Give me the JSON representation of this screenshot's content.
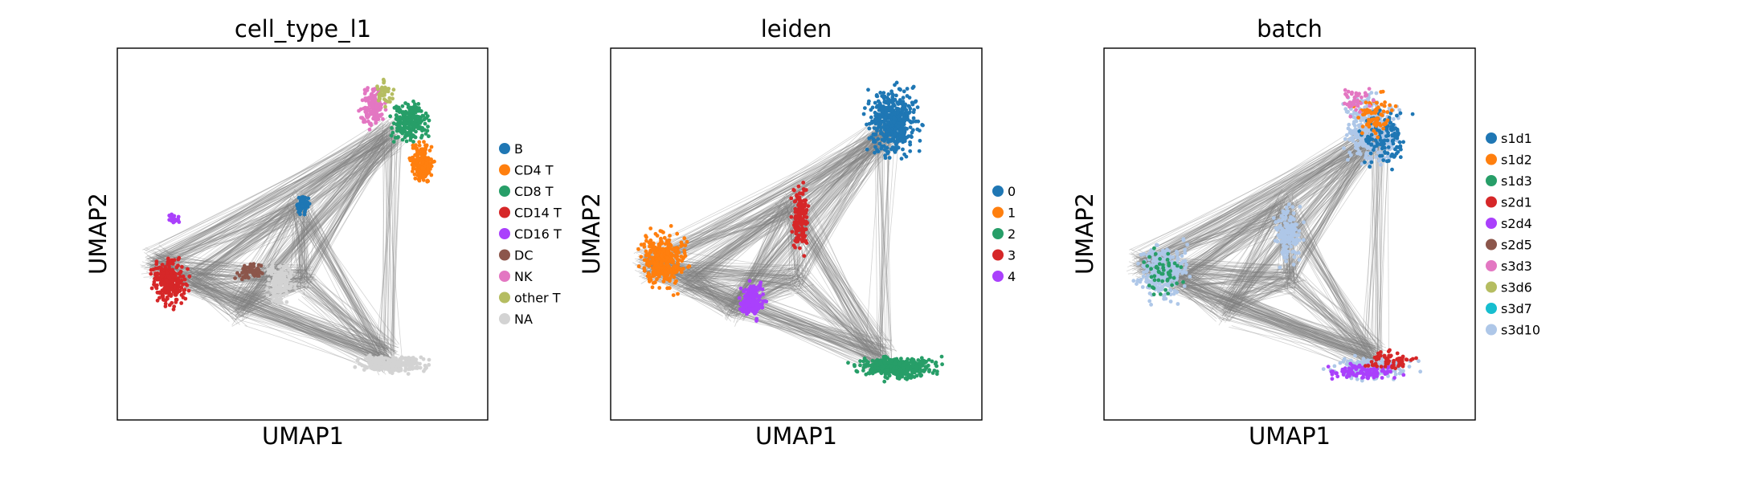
{
  "colors": {
    "edge": "#808080",
    "frame": "#000000"
  },
  "chart_data": [
    {
      "type": "scatter",
      "title": "cell_type_l1",
      "xlabel": "UMAP1",
      "ylabel": "UMAP2",
      "legend_position": "right",
      "grid": false,
      "categories": [
        "B",
        "CD4 T",
        "CD8 T",
        "CD14 T",
        "CD16 T",
        "DC",
        "NK",
        "other T",
        "NA"
      ],
      "category_colors": [
        "#1f77b4",
        "#ff7f0e",
        "#279e68",
        "#d62728",
        "#aa40fc",
        "#8c564b",
        "#e377c2",
        "#b5bd61",
        "#d3d3d3"
      ]
    },
    {
      "type": "scatter",
      "title": "leiden",
      "xlabel": "UMAP1",
      "ylabel": "UMAP2",
      "legend_position": "right",
      "grid": false,
      "categories": [
        "0",
        "1",
        "2",
        "3",
        "4"
      ],
      "category_colors": [
        "#1f77b4",
        "#ff7f0e",
        "#279e68",
        "#d62728",
        "#aa40fc"
      ]
    },
    {
      "type": "scatter",
      "title": "batch",
      "xlabel": "UMAP1",
      "ylabel": "UMAP2",
      "legend_position": "right",
      "grid": false,
      "categories": [
        "s1d1",
        "s1d2",
        "s1d3",
        "s2d1",
        "s2d4",
        "s2d5",
        "s3d3",
        "s3d6",
        "s3d7",
        "s3d10"
      ],
      "category_colors": [
        "#1f77b4",
        "#ff7f0e",
        "#279e68",
        "#d62728",
        "#aa40fc",
        "#8c564b",
        "#e377c2",
        "#b5bd61",
        "#17becf",
        "#aec7e8"
      ]
    }
  ]
}
